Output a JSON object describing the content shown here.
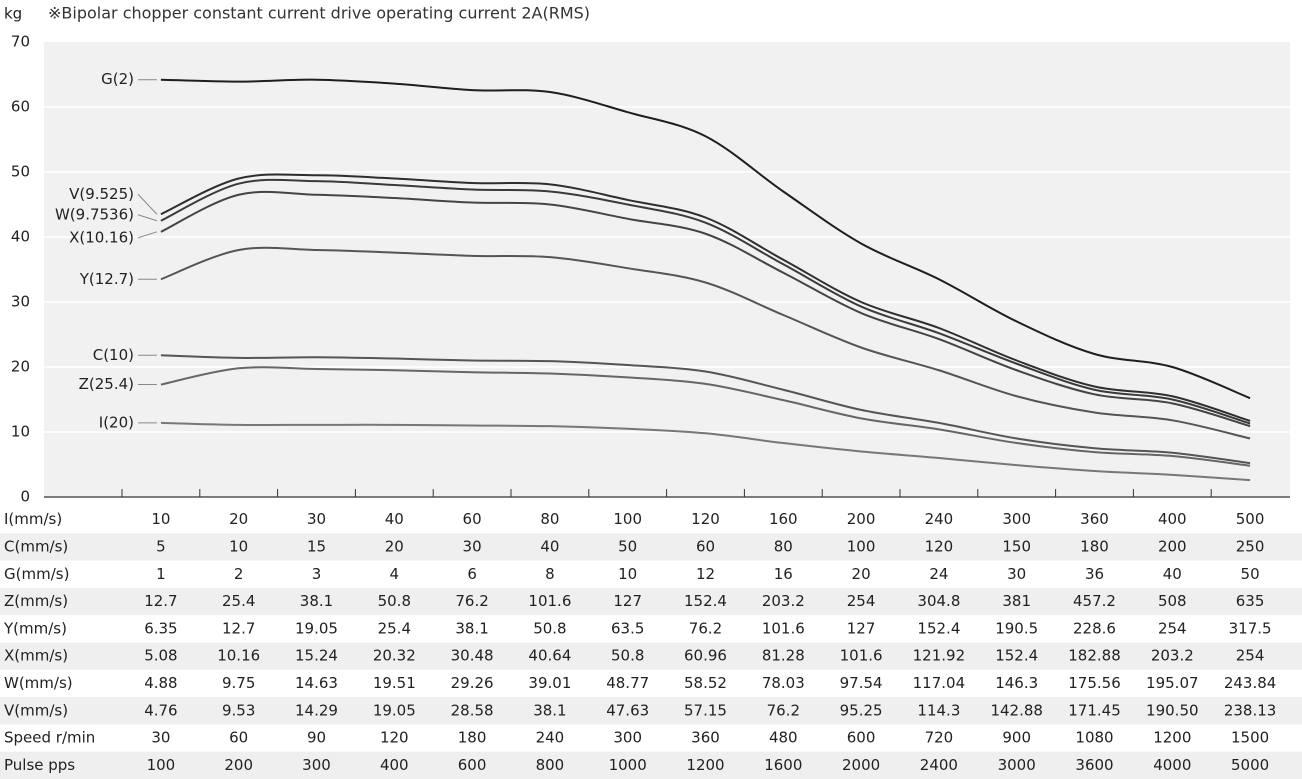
{
  "chart_data": {
    "type": "line",
    "title": "※Bipolar chopper constant current drive operating current 2A(RMS)",
    "y_label": "kg",
    "ylim": [
      0,
      70
    ],
    "yticks": [
      0,
      10,
      20,
      30,
      40,
      50,
      60,
      70
    ],
    "grid": true,
    "series": [
      {
        "name": "G(2)",
        "color": "#1e1e1e",
        "values": [
          64.2,
          63.9,
          64.2,
          63.6,
          62.6,
          62.3,
          59.2,
          55.5,
          47,
          39,
          33.5,
          27,
          22,
          20,
          15.2
        ]
      },
      {
        "name": "V(9.525)",
        "color": "#2e2e2e",
        "values": [
          43.5,
          49,
          49.5,
          49,
          48.3,
          48.1,
          45.7,
          43,
          36.5,
          30,
          26,
          21,
          17,
          15.5,
          11.7
        ]
      },
      {
        "name": "W(9.7536)",
        "color": "#3a3a3a",
        "values": [
          42.5,
          48.2,
          48.6,
          48,
          47.3,
          47,
          45,
          42.2,
          35.8,
          29.3,
          25.2,
          20.5,
          16.5,
          15,
          11.3
        ]
      },
      {
        "name": "X(10.16)",
        "color": "#444444",
        "values": [
          40.8,
          46.5,
          46.5,
          46,
          45.3,
          45,
          42.8,
          40.5,
          34.5,
          28.3,
          24.3,
          19.5,
          15.8,
          14.4,
          10.9
        ]
      },
      {
        "name": "Y(12.7)",
        "color": "#555555",
        "values": [
          33.5,
          38,
          38,
          37.6,
          37.1,
          36.9,
          35.2,
          33,
          28,
          23,
          19.5,
          15.5,
          13,
          11.8,
          9
        ]
      },
      {
        "name": "C(10)",
        "color": "#555555",
        "values": [
          21.8,
          21.4,
          21.5,
          21.3,
          21,
          20.9,
          20.3,
          19.3,
          16.5,
          13.4,
          11.4,
          9,
          7.5,
          6.8,
          5.2
        ]
      },
      {
        "name": "Z(25.4)",
        "color": "#666666",
        "values": [
          17.3,
          19.8,
          19.7,
          19.5,
          19.2,
          19,
          18.4,
          17.4,
          14.9,
          12.1,
          10.4,
          8.3,
          6.9,
          6.3,
          4.8
        ]
      },
      {
        "name": "I(20)",
        "color": "#777777",
        "values": [
          11.4,
          11.1,
          11.1,
          11.1,
          11,
          10.9,
          10.5,
          9.8,
          8.3,
          7,
          6,
          4.9,
          4,
          3.4,
          2.6
        ]
      }
    ]
  },
  "table": {
    "rows": [
      [
        "I(mm/s)",
        "10",
        "20",
        "30",
        "40",
        "60",
        "80",
        "100",
        "120",
        "160",
        "200",
        "240",
        "300",
        "360",
        "400",
        "500"
      ],
      [
        "C(mm/s)",
        "5",
        "10",
        "15",
        "20",
        "30",
        "40",
        "50",
        "60",
        "80",
        "100",
        "120",
        "150",
        "180",
        "200",
        "250"
      ],
      [
        "G(mm/s)",
        "1",
        "2",
        "3",
        "4",
        "6",
        "8",
        "10",
        "12",
        "16",
        "20",
        "24",
        "30",
        "36",
        "40",
        "50"
      ],
      [
        "Z(mm/s)",
        "12.7",
        "25.4",
        "38.1",
        "50.8",
        "76.2",
        "101.6",
        "127",
        "152.4",
        "203.2",
        "254",
        "304.8",
        "381",
        "457.2",
        "508",
        "635"
      ],
      [
        "Y(mm/s)",
        "6.35",
        "12.7",
        "19.05",
        "25.4",
        "38.1",
        "50.8",
        "63.5",
        "76.2",
        "101.6",
        "127",
        "152.4",
        "190.5",
        "228.6",
        "254",
        "317.5"
      ],
      [
        "X(mm/s)",
        "5.08",
        "10.16",
        "15.24",
        "20.32",
        "30.48",
        "40.64",
        "50.8",
        "60.96",
        "81.28",
        "101.6",
        "121.92",
        "152.4",
        "182.88",
        "203.2",
        "254"
      ],
      [
        "W(mm/s)",
        "4.88",
        "9.75",
        "14.63",
        "19.51",
        "29.26",
        "39.01",
        "48.77",
        "58.52",
        "78.03",
        "97.54",
        "117.04",
        "146.3",
        "175.56",
        "195.07",
        "243.84"
      ],
      [
        "V(mm/s)",
        "4.76",
        "9.53",
        "14.29",
        "19.05",
        "28.58",
        "38.1",
        "47.63",
        "57.15",
        "76.2",
        "95.25",
        "114.3",
        "142.88",
        "171.45",
        "190.50",
        "238.13"
      ],
      [
        "Speed r/min",
        "30",
        "60",
        "90",
        "120",
        "180",
        "240",
        "300",
        "360",
        "480",
        "600",
        "720",
        "900",
        "1080",
        "1200",
        "1500"
      ],
      [
        "Pulse pps",
        "100",
        "200",
        "300",
        "400",
        "600",
        "800",
        "1000",
        "1200",
        "1600",
        "2000",
        "2400",
        "3000",
        "3600",
        "4000",
        "5000"
      ]
    ]
  }
}
